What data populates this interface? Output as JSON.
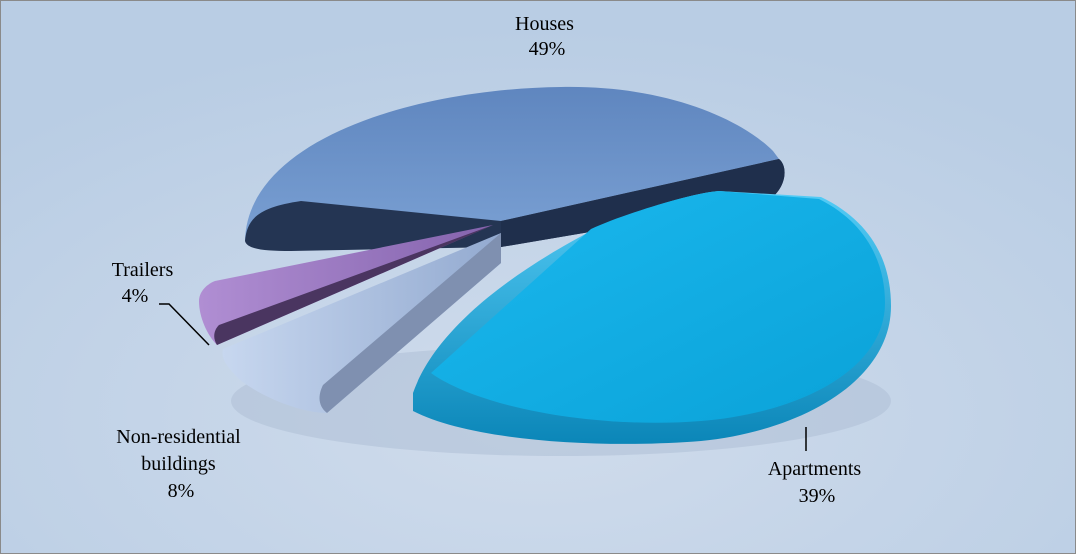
{
  "chart_data": {
    "type": "pie",
    "title": "",
    "categories": [
      "Houses",
      "Apartments",
      "Non-residential buildings",
      "Trailers"
    ],
    "values": [
      49,
      39,
      8,
      4
    ],
    "value_suffix": "%",
    "exploded": [
      "Apartments",
      "Non-residential buildings",
      "Trailers"
    ],
    "style": "3d",
    "legend": "none",
    "slices": [
      {
        "label": "Houses",
        "label_lines": [
          "Houses"
        ],
        "value_text": "49%",
        "value": 49,
        "color": "#6a8fc3"
      },
      {
        "label": "Apartments",
        "label_lines": [
          "Apartments"
        ],
        "value_text": "39%",
        "value": 39,
        "color": "#12b1e6"
      },
      {
        "label": "Non-residential buildings",
        "label_lines": [
          "Non-residential",
          "buildings"
        ],
        "value_text": "8%",
        "value": 8,
        "color": "#a7bde0"
      },
      {
        "label": "Trailers",
        "label_lines": [
          "Trailers"
        ],
        "value_text": "4%",
        "value": 4,
        "color": "#9a78c2"
      }
    ],
    "background_color": "#b9cde4",
    "border_color": "#8a8a8a"
  }
}
